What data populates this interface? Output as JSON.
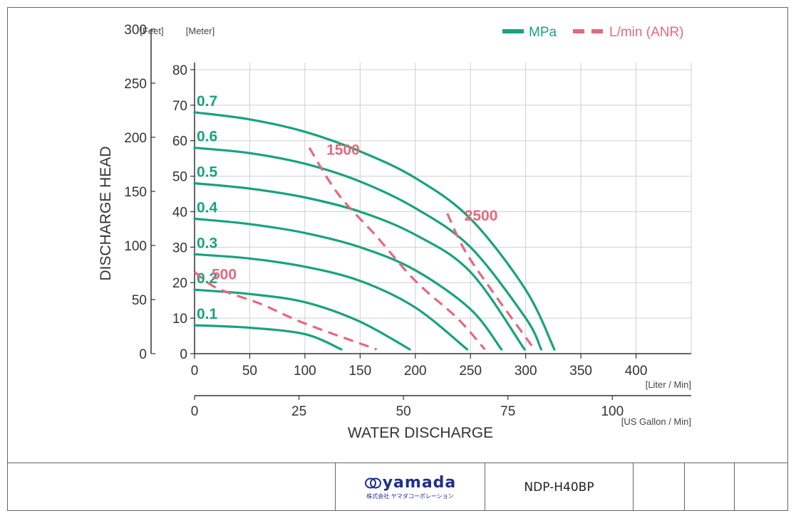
{
  "chart_data": {
    "type": "line",
    "xlabel": "WATER DISCHARGE",
    "ylabel": "DISCHARGE HEAD",
    "x_unit_primary": "[Liter / Min]",
    "x_unit_secondary": "[US Gallon / Min]",
    "y_unit_feet": "[Feet]",
    "y_unit_meter": "[Meter]",
    "x_ticks_liter": [
      0,
      50,
      100,
      150,
      200,
      250,
      300,
      350,
      400
    ],
    "x_ticks_gallon": [
      0,
      25,
      50,
      75,
      100
    ],
    "y_ticks_meter": [
      0,
      10,
      20,
      30,
      40,
      50,
      60,
      70,
      80
    ],
    "y_ticks_feet": [
      0,
      50,
      100,
      150,
      200,
      250,
      300
    ],
    "xlim": [
      0,
      450
    ],
    "ylim": [
      0,
      85
    ],
    "grid": true,
    "legend": [
      {
        "label": "MPa",
        "style": "solid",
        "color": "#17a37e"
      },
      {
        "label": "L/min (ANR)",
        "style": "dashed",
        "color": "#e8677d"
      }
    ],
    "legend_position": "top-right",
    "pressure_series": [
      {
        "name": "0.1",
        "points": [
          [
            0,
            8
          ],
          [
            50,
            7.3
          ],
          [
            100,
            5.5
          ],
          [
            133,
            1.2
          ]
        ]
      },
      {
        "name": "0.2",
        "points": [
          [
            0,
            18
          ],
          [
            50,
            16.8
          ],
          [
            100,
            14.5
          ],
          [
            150,
            9
          ],
          [
            195,
            1.2
          ]
        ]
      },
      {
        "name": "0.3",
        "points": [
          [
            0,
            28
          ],
          [
            50,
            26.8
          ],
          [
            100,
            24.5
          ],
          [
            150,
            20.5
          ],
          [
            200,
            13
          ],
          [
            247,
            1.2
          ]
        ]
      },
      {
        "name": "0.4",
        "points": [
          [
            0,
            38
          ],
          [
            50,
            36.5
          ],
          [
            100,
            34
          ],
          [
            150,
            30
          ],
          [
            200,
            23.5
          ],
          [
            250,
            12.5
          ],
          [
            278,
            1.2
          ]
        ]
      },
      {
        "name": "0.5",
        "points": [
          [
            0,
            48
          ],
          [
            50,
            46.5
          ],
          [
            100,
            44
          ],
          [
            150,
            40
          ],
          [
            200,
            33.5
          ],
          [
            250,
            23
          ],
          [
            299,
            1.2
          ]
        ]
      },
      {
        "name": "0.6",
        "points": [
          [
            0,
            58
          ],
          [
            50,
            56.5
          ],
          [
            100,
            53.5
          ],
          [
            150,
            48.5
          ],
          [
            200,
            41
          ],
          [
            250,
            30
          ],
          [
            300,
            10
          ],
          [
            314,
            1.2
          ]
        ]
      },
      {
        "name": "0.7",
        "points": [
          [
            0,
            68
          ],
          [
            50,
            66
          ],
          [
            100,
            62.5
          ],
          [
            150,
            57
          ],
          [
            200,
            49.5
          ],
          [
            250,
            38
          ],
          [
            300,
            18
          ],
          [
            326,
            1.2
          ]
        ]
      }
    ],
    "airflow_series": [
      {
        "name": "500",
        "points": [
          [
            0,
            23
          ],
          [
            20,
            18.5
          ],
          [
            60,
            14
          ],
          [
            100,
            8.5
          ],
          [
            165,
            1.2
          ]
        ]
      },
      {
        "name": "1500",
        "points": [
          [
            104,
            58
          ],
          [
            130,
            45
          ],
          [
            165,
            33
          ],
          [
            200,
            20.5
          ],
          [
            238,
            10
          ],
          [
            263,
            1.2
          ]
        ]
      },
      {
        "name": "2500",
        "points": [
          [
            229,
            39.5
          ],
          [
            245,
            29
          ],
          [
            270,
            17.5
          ],
          [
            308,
            1.2
          ]
        ]
      }
    ]
  },
  "title_block": {
    "brand": "yamada",
    "brand_sub": "株式会社 ヤマダコーポレーション",
    "model": "NDP-H40BP"
  }
}
